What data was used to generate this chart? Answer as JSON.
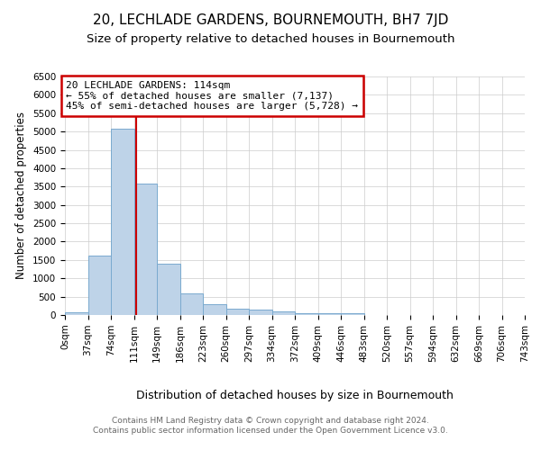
{
  "title": "20, LECHLADE GARDENS, BOURNEMOUTH, BH7 7JD",
  "subtitle": "Size of property relative to detached houses in Bournemouth",
  "xlabel": "Distribution of detached houses by size in Bournemouth",
  "ylabel": "Number of detached properties",
  "bin_edges": [
    0,
    37,
    74,
    111,
    148,
    185,
    222,
    259,
    296,
    333,
    370,
    407,
    444,
    481,
    518,
    555,
    592,
    629,
    666,
    703,
    740
  ],
  "tick_labels": [
    "0sqm",
    "37sqm",
    "74sqm",
    "111sqm",
    "149sqm",
    "186sqm",
    "223sqm",
    "260sqm",
    "297sqm",
    "334sqm",
    "372sqm",
    "409sqm",
    "446sqm",
    "483sqm",
    "520sqm",
    "557sqm",
    "594sqm",
    "632sqm",
    "669sqm",
    "706sqm",
    "743sqm"
  ],
  "bar_heights": [
    75,
    1625,
    5075,
    3575,
    1400,
    590,
    300,
    160,
    140,
    100,
    60,
    40,
    60,
    0,
    0,
    0,
    0,
    0,
    0,
    0
  ],
  "bar_color": "#bed3e8",
  "bar_edge_color": "#7aaacf",
  "property_value": 114,
  "vline_color": "#cc0000",
  "ylim": [
    0,
    6500
  ],
  "annotation_text": "20 LECHLADE GARDENS: 114sqm\n← 55% of detached houses are smaller (7,137)\n45% of semi-detached houses are larger (5,728) →",
  "annotation_box_color": "#cc0000",
  "footer_line1": "Contains HM Land Registry data © Crown copyright and database right 2024.",
  "footer_line2": "Contains public sector information licensed under the Open Government Licence v3.0.",
  "title_fontsize": 11,
  "subtitle_fontsize": 9.5,
  "tick_label_fontsize": 7.5,
  "axis_label_fontsize": 9,
  "ylabel_fontsize": 8.5,
  "grid_color": "#cccccc",
  "background_color": "#ffffff",
  "plot_bg_color": "#ffffff"
}
